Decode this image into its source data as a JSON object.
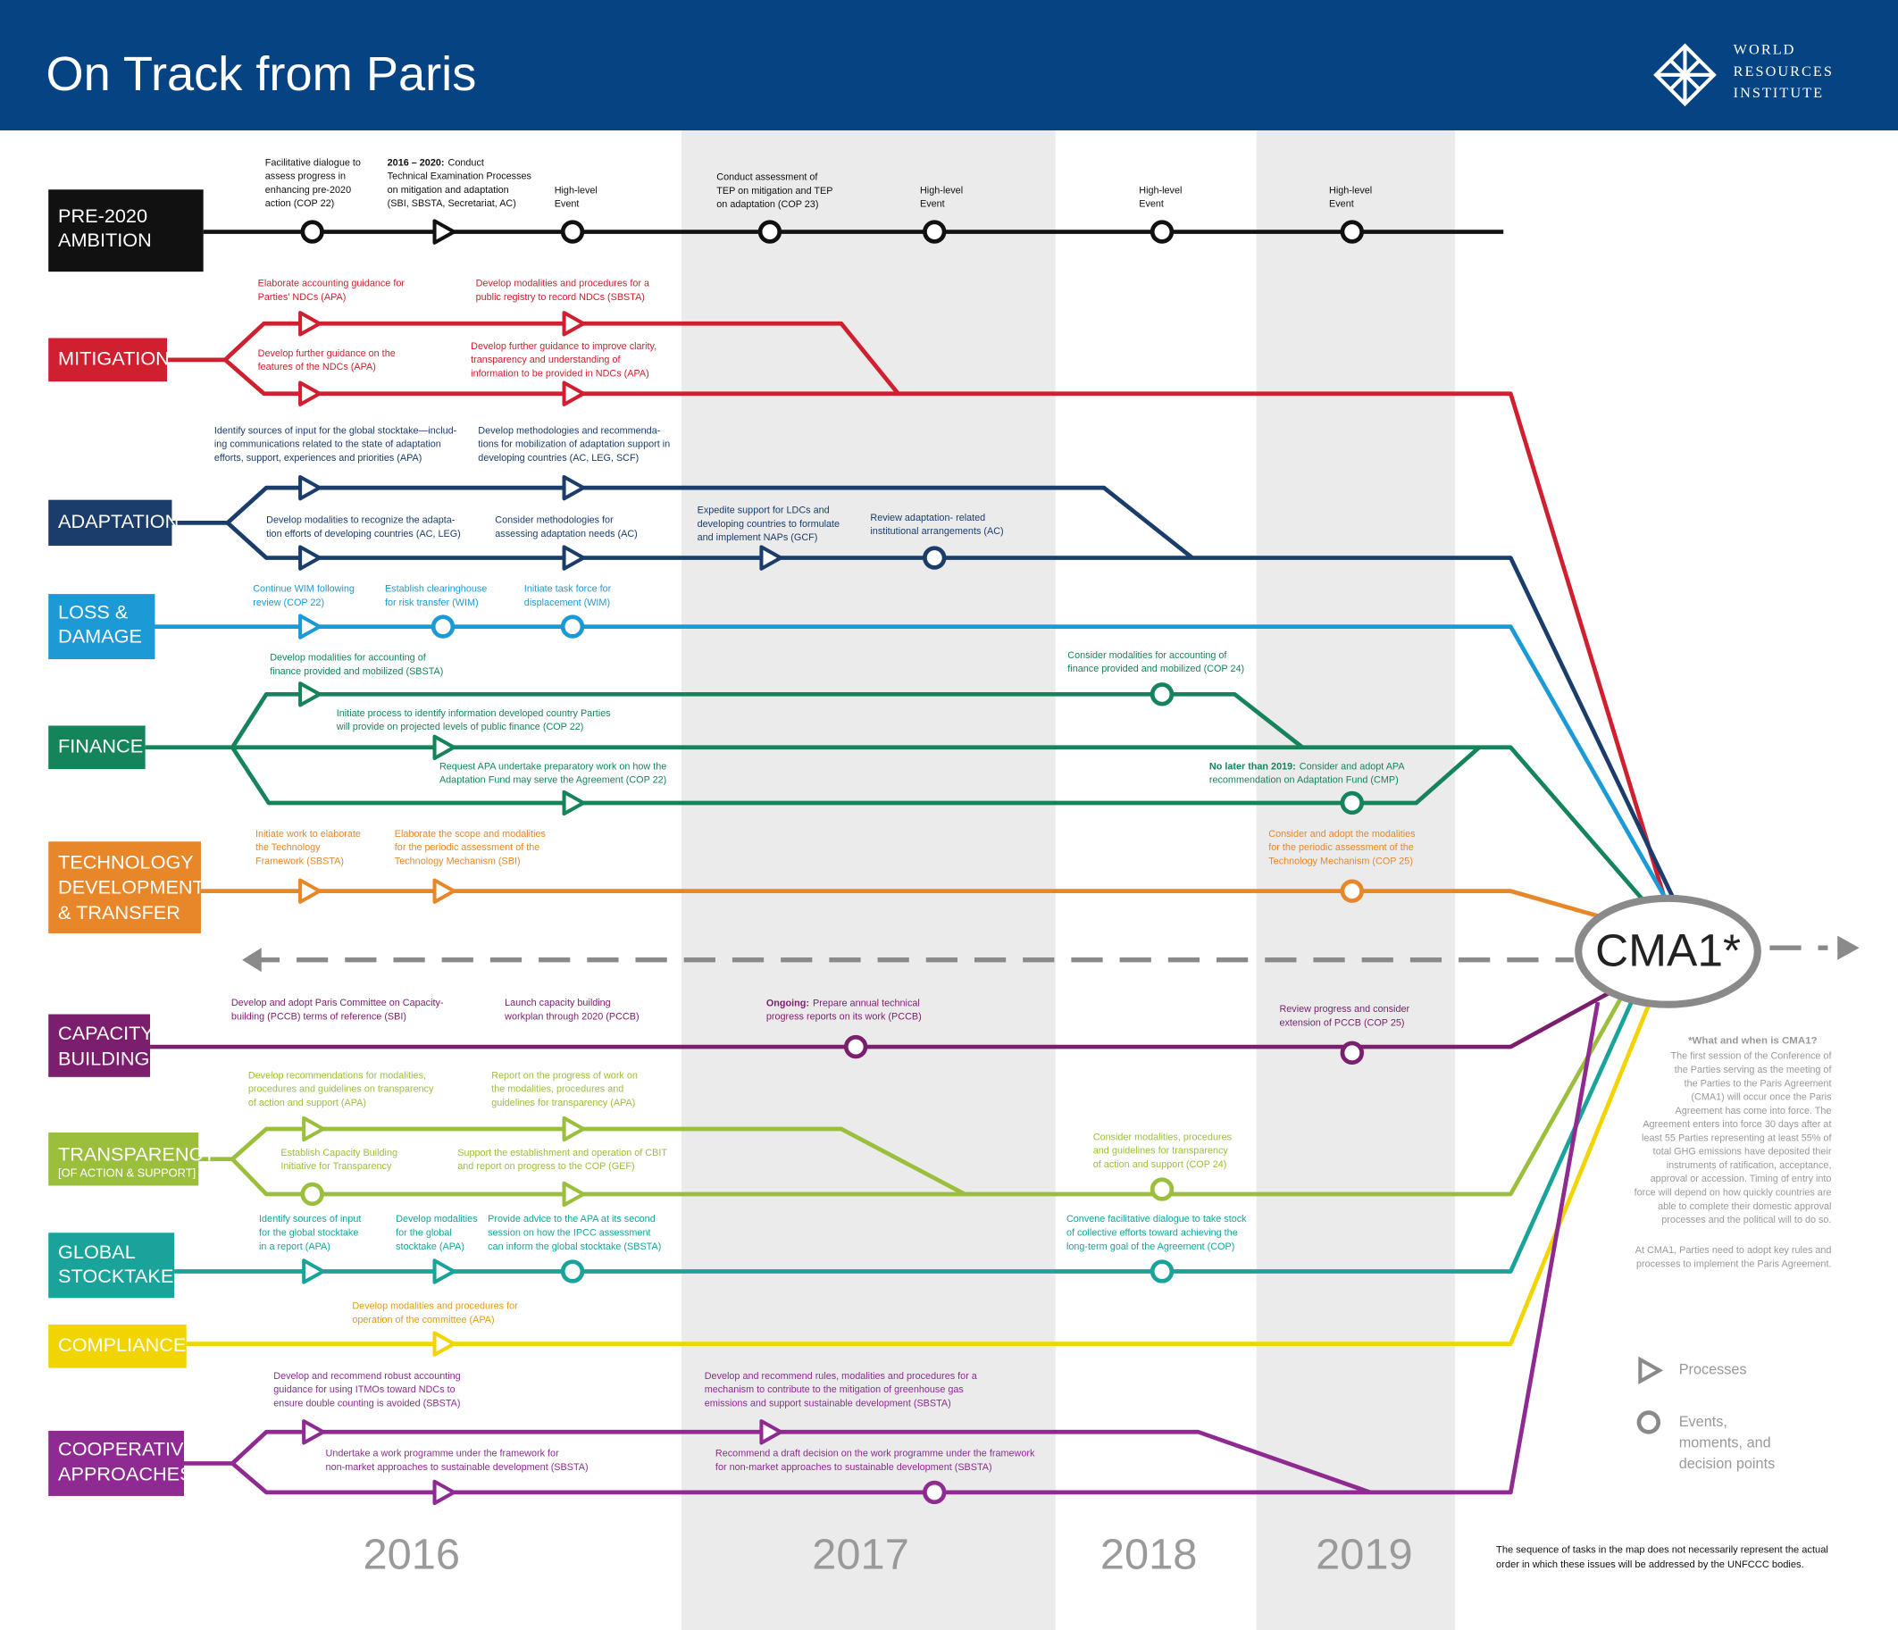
{
  "header": {
    "title": "On Track from Paris",
    "logo": [
      "WORLD",
      "RESOURCES",
      "INSTITUTE"
    ]
  },
  "tracks": [
    {
      "label": [
        "PRE-2020",
        "AMBITION"
      ],
      "color": "#111111",
      "items": [
        {
          "kind": "event",
          "lines": [
            "Facilitative dialogue to",
            "assess progress in",
            "enhancing pre-2020",
            "action (COP 22)"
          ]
        },
        {
          "kind": "process",
          "lead": "2016 – 2020:",
          "lines": [
            "Conduct",
            "Technical Examination Processes",
            "on mitigation and adaptation",
            "(SBI, SBSTA, Secretariat, AC)"
          ]
        },
        {
          "kind": "event",
          "lines": [
            "High-level",
            "Event"
          ]
        },
        {
          "kind": "event",
          "lines": [
            "Conduct assessment of",
            "TEP on mitigation and TEP",
            "on adaptation (COP 23)"
          ]
        },
        {
          "kind": "event",
          "lines": [
            "High-level",
            "Event"
          ]
        },
        {
          "kind": "event",
          "lines": [
            "High-level",
            "Event"
          ]
        },
        {
          "kind": "event",
          "lines": [
            "High-level",
            "Event"
          ]
        }
      ]
    },
    {
      "label": [
        "MITIGATION"
      ],
      "color": "#d0202f",
      "items": [
        {
          "kind": "process",
          "lines": [
            "Elaborate accounting guidance for",
            "Parties' NDCs (APA)"
          ]
        },
        {
          "kind": "process",
          "lines": [
            "Develop further guidance on the",
            "features of the NDCs (APA)"
          ]
        },
        {
          "kind": "process",
          "lines": [
            "Develop modalities and procedures for a",
            "public registry to record NDCs (SBSTA)"
          ]
        },
        {
          "kind": "process",
          "lines": [
            "Develop further guidance to improve clarity,",
            "transparency and understanding of",
            "information to be provided in NDCs (APA)"
          ]
        }
      ]
    },
    {
      "label": [
        "ADAPTATION"
      ],
      "color": "#1a3d6b",
      "items": [
        {
          "kind": "process",
          "lines": [
            "Identify sources of input for the global stocktake—includ-",
            "ing  communications related to the state of adaptation",
            "efforts, support, experiences and priorities (APA)"
          ]
        },
        {
          "kind": "process",
          "lines": [
            "Develop modalities to recognize the adapta-",
            "tion efforts of developing countries (AC, LEG)"
          ]
        },
        {
          "kind": "process",
          "lines": [
            "Develop methodologies and recommenda-",
            "tions for mobilization of adaptation support in",
            "developing countries (AC, LEG, SCF)"
          ]
        },
        {
          "kind": "process",
          "lines": [
            "Consider methodologies for",
            "assessing adaptation needs (AC)"
          ]
        },
        {
          "kind": "process",
          "lines": [
            "Expedite support for LDCs and",
            "developing countries to formulate",
            "and implement NAPs (GCF)"
          ]
        },
        {
          "kind": "event",
          "lines": [
            "Review adaptation- related",
            "institutional arrangements (AC)"
          ]
        }
      ]
    },
    {
      "label": [
        "LOSS &",
        "DAMAGE"
      ],
      "color": "#1c9ad6",
      "items": [
        {
          "kind": "process",
          "lines": [
            "Continue WIM following",
            "review (COP 22)"
          ]
        },
        {
          "kind": "event",
          "lines": [
            "Establish clearinghouse",
            "for risk transfer (WIM)"
          ]
        },
        {
          "kind": "event",
          "lines": [
            "Initiate task force for",
            "displacement (WIM)"
          ]
        }
      ]
    },
    {
      "label": [
        "FINANCE"
      ],
      "color": "#16845a",
      "items": [
        {
          "kind": "process",
          "lines": [
            "Develop modalities for accounting of",
            "finance provided and mobilized (SBSTA)"
          ]
        },
        {
          "kind": "event",
          "lines": [
            "Consider modalities for accounting of",
            "finance provided and mobilized (COP 24)"
          ]
        },
        {
          "kind": "process",
          "lines": [
            "Initiate process to identify information developed country Parties",
            "will provide on projected levels of public finance (COP 22)"
          ]
        },
        {
          "kind": "process",
          "lines": [
            "Request APA undertake preparatory work on how the",
            "Adaptation Fund may serve the Agreement (COP 22)"
          ]
        },
        {
          "kind": "event",
          "lead": "No later than 2019:",
          "lines": [
            "Consider and adopt APA",
            "recommendation on Adaptation Fund (CMP)"
          ]
        }
      ]
    },
    {
      "label": [
        "TECHNOLOGY",
        "DEVELOPMENT",
        "& TRANSFER"
      ],
      "color": "#e8872a",
      "items": [
        {
          "kind": "process",
          "lines": [
            "Initiate work to elaborate",
            "the Technology",
            "Framework (SBSTA)"
          ]
        },
        {
          "kind": "process",
          "lines": [
            "Elaborate the scope and modalities",
            "for the periodic assessment of the",
            "Technology Mechanism (SBI)"
          ]
        },
        {
          "kind": "event",
          "lines": [
            "Consider and adopt the modalities",
            "for the periodic assessment of the",
            "Technology Mechanism (COP 25)"
          ]
        }
      ]
    },
    {
      "label": [
        "CAPACITY",
        "BUILDING"
      ],
      "color": "#7b1e6e",
      "items": [
        {
          "kind": "label",
          "lines": [
            "Develop and adopt Paris Committee on Capacity-",
            "building (PCCB) terms of reference (SBI)"
          ]
        },
        {
          "kind": "label",
          "lines": [
            "Launch capacity building",
            "workplan through 2020 (PCCB)"
          ]
        },
        {
          "kind": "event",
          "lead": "Ongoing:",
          "lines": [
            "Prepare annual technical",
            "progress reports on its work (PCCB)"
          ]
        },
        {
          "kind": "event",
          "lines": [
            "Review progress and consider",
            "extension of PCCB (COP 25)"
          ]
        }
      ]
    },
    {
      "label": [
        "TRANSPARENCY"
      ],
      "sublabel": "[OF ACTION & SUPPORT]",
      "color": "#9bbf3c",
      "items": [
        {
          "kind": "process",
          "lines": [
            "Develop recommendations for modalities,",
            "procedures and guidelines on transparency",
            "of action and support (APA)"
          ]
        },
        {
          "kind": "event",
          "lines": [
            "Establish Capacity Building",
            "Initiative for Transparency"
          ]
        },
        {
          "kind": "process",
          "lines": [
            "Report on the progress of work on",
            "the modalities, procedures and",
            "guidelines for transparency (APA)"
          ]
        },
        {
          "kind": "process",
          "lines": [
            "Support the establishment and operation of CBIT",
            "and report on progress to the COP (GEF)"
          ]
        },
        {
          "kind": "event",
          "lines": [
            "Consider modalities, procedures",
            "and guidelines for transparency",
            "of action and support (COP 24)"
          ]
        }
      ]
    },
    {
      "label": [
        "GLOBAL",
        "STOCKTAKE"
      ],
      "color": "#1aa39a",
      "items": [
        {
          "kind": "process",
          "lines": [
            "Identify sources of input",
            "for the global stocktake",
            "in a report (APA)"
          ]
        },
        {
          "kind": "process",
          "lines": [
            "Develop modalities",
            "for the global",
            "stocktake (APA)"
          ]
        },
        {
          "kind": "event",
          "lines": [
            "Provide advice to the APA at its second",
            "session on how the IPCC assessment",
            "can inform the  global stocktake (SBSTA)"
          ]
        },
        {
          "kind": "event",
          "lines": [
            "Convene facilitative dialogue to take stock",
            "of collective efforts toward achieving the",
            "long-term goal of the Agreement (COP)"
          ]
        }
      ]
    },
    {
      "label": [
        "COMPLIANCE"
      ],
      "color": "#f2d500",
      "label_color": "#111111",
      "text_color": "#e09a10",
      "items": [
        {
          "kind": "process",
          "lines": [
            "Develop modalities and procedures for",
            "operation of the committee (APA)"
          ]
        }
      ]
    },
    {
      "label": [
        "COOPERATIVE",
        "APPROACHES"
      ],
      "color": "#8e2a91",
      "items": [
        {
          "kind": "process",
          "lines": [
            "Develop and recommend robust accounting",
            "guidance for using ITMOs toward NDCs to",
            "ensure double counting is avoided (SBSTA)"
          ]
        },
        {
          "kind": "process",
          "lines": [
            "Undertake a work programme under the framework for",
            "non-market approaches to sustainable development (SBSTA)"
          ]
        },
        {
          "kind": "process",
          "lines": [
            "Develop and recommend rules, modalities and procedures for a",
            "mechanism to contribute to the mitigation of greenhouse gas",
            "emissions and support sustainable development (SBSTA)"
          ]
        },
        {
          "kind": "event",
          "lines": [
            "Recommend a draft decision on the work programme under the framework",
            "for non-market approaches to sustainable development (SBSTA)"
          ]
        }
      ]
    }
  ],
  "center": "CMA1*",
  "years": [
    "2016",
    "2017",
    "2018",
    "2019"
  ],
  "note": {
    "title": "*What and when is CMA1?",
    "paragraphs": [
      [
        "The first session of the Conference of",
        "the Parties serving as the meeting of",
        "the Parties to the Paris Agreement",
        "(CMA1) will occur once the Paris",
        "Agreement has come into force.  The",
        "Agreement enters into force 30 days after at",
        "least 55 Parties representing at least 55% of",
        "total GHG emissions have deposited their",
        "instruments of ratification, acceptance,",
        "approval or accession. Timing of entry into",
        "force will depend on how quickly countries are",
        "able to complete their domestic approval",
        "processes and the political will to do so."
      ],
      [
        "At CMA1, Parties need to adopt key rules and",
        "processes to implement the Paris Agreement."
      ]
    ]
  },
  "legend": {
    "processes": "Processes",
    "events": [
      "Events,",
      "moments, and",
      "decision points"
    ]
  },
  "disclaimer": [
    "The sequence of tasks in the map does not necessarily represent the actual",
    "order in which these issues will be addressed by the UNFCCC bodies."
  ]
}
